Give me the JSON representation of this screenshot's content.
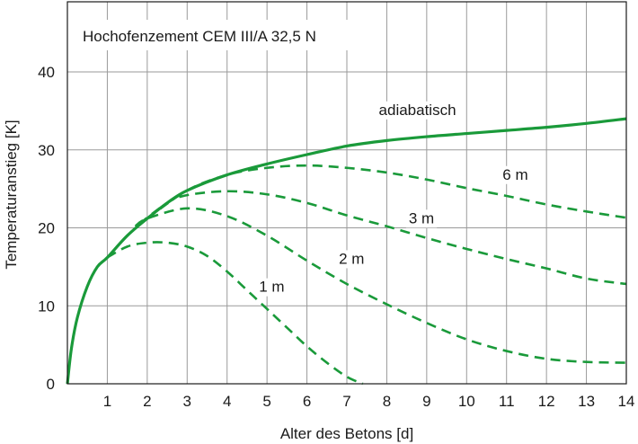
{
  "chart_data": {
    "type": "line",
    "title": "Hochofenzement CEM III/A 32,5 N",
    "xlabel": "Alter des Betons [d]",
    "ylabel": "Temperaturanstieg [K]",
    "xlim": [
      0,
      14
    ],
    "ylim": [
      0,
      49
    ],
    "x_ticks": [
      1,
      2,
      3,
      4,
      5,
      6,
      7,
      8,
      9,
      10,
      11,
      12,
      13,
      14
    ],
    "y_ticks": [
      0,
      10,
      20,
      30,
      40
    ],
    "grid": true,
    "line_color": "#1a9a3a",
    "series": [
      {
        "name": "adiabatisch",
        "style": "solid",
        "x": [
          0,
          0.1,
          0.25,
          0.5,
          0.75,
          1,
          1.5,
          2,
          2.5,
          3,
          4,
          5,
          6,
          7,
          8,
          9,
          10,
          11,
          12,
          13,
          14
        ],
        "y": [
          0,
          4.5,
          8.5,
          12.5,
          15,
          16.2,
          19,
          21.2,
          23.2,
          24.8,
          26.8,
          28.2,
          29.4,
          30.5,
          31.2,
          31.7,
          32.1,
          32.5,
          32.9,
          33.4,
          34
        ]
      },
      {
        "name": "6 m",
        "style": "dashed",
        "x": [
          2,
          3,
          4,
          5,
          6,
          7,
          8,
          9,
          10,
          11,
          12,
          13,
          14
        ],
        "y": [
          21.2,
          24.8,
          26.8,
          27.7,
          28,
          27.7,
          27.1,
          26.2,
          25.1,
          24.1,
          23,
          22.1,
          21.3
        ]
      },
      {
        "name": "3 m",
        "style": "dashed",
        "x": [
          1.8,
          2.5,
          3,
          4,
          5,
          6,
          7,
          8,
          9,
          10,
          11,
          12,
          13,
          14
        ],
        "y": [
          20.5,
          23.2,
          24.2,
          24.7,
          24.3,
          23.2,
          21.6,
          20.2,
          18.7,
          17.3,
          16,
          14.8,
          13.5,
          12.8
        ]
      },
      {
        "name": "2 m",
        "style": "dashed",
        "x": [
          1.7,
          2,
          3,
          4,
          5,
          6,
          7,
          8,
          9,
          10,
          11,
          12,
          13,
          14
        ],
        "y": [
          20.2,
          21.2,
          22.5,
          21.5,
          19,
          15.8,
          12.8,
          10.2,
          7.8,
          5.7,
          4.2,
          3.2,
          2.8,
          2.7
        ]
      },
      {
        "name": "1 m",
        "style": "dashed",
        "x": [
          1,
          1.5,
          2,
          2.5,
          3,
          3.5,
          4,
          4.5,
          5,
          5.5,
          6,
          6.5,
          7,
          7.4
        ],
        "y": [
          16.2,
          17.6,
          18.1,
          18.1,
          17.6,
          16.4,
          14.4,
          12,
          9.6,
          7.2,
          4.8,
          2.7,
          0.9,
          0
        ]
      }
    ],
    "labels": [
      {
        "text": "adiabatisch",
        "x": 7.8,
        "y": 34.5
      },
      {
        "text": "6 m",
        "x": 10.9,
        "y": 26.2
      },
      {
        "text": "3 m",
        "x": 8.55,
        "y": 20.6
      },
      {
        "text": "2 m",
        "x": 6.8,
        "y": 15.4
      },
      {
        "text": "1 m",
        "x": 4.8,
        "y": 11.8
      }
    ]
  }
}
